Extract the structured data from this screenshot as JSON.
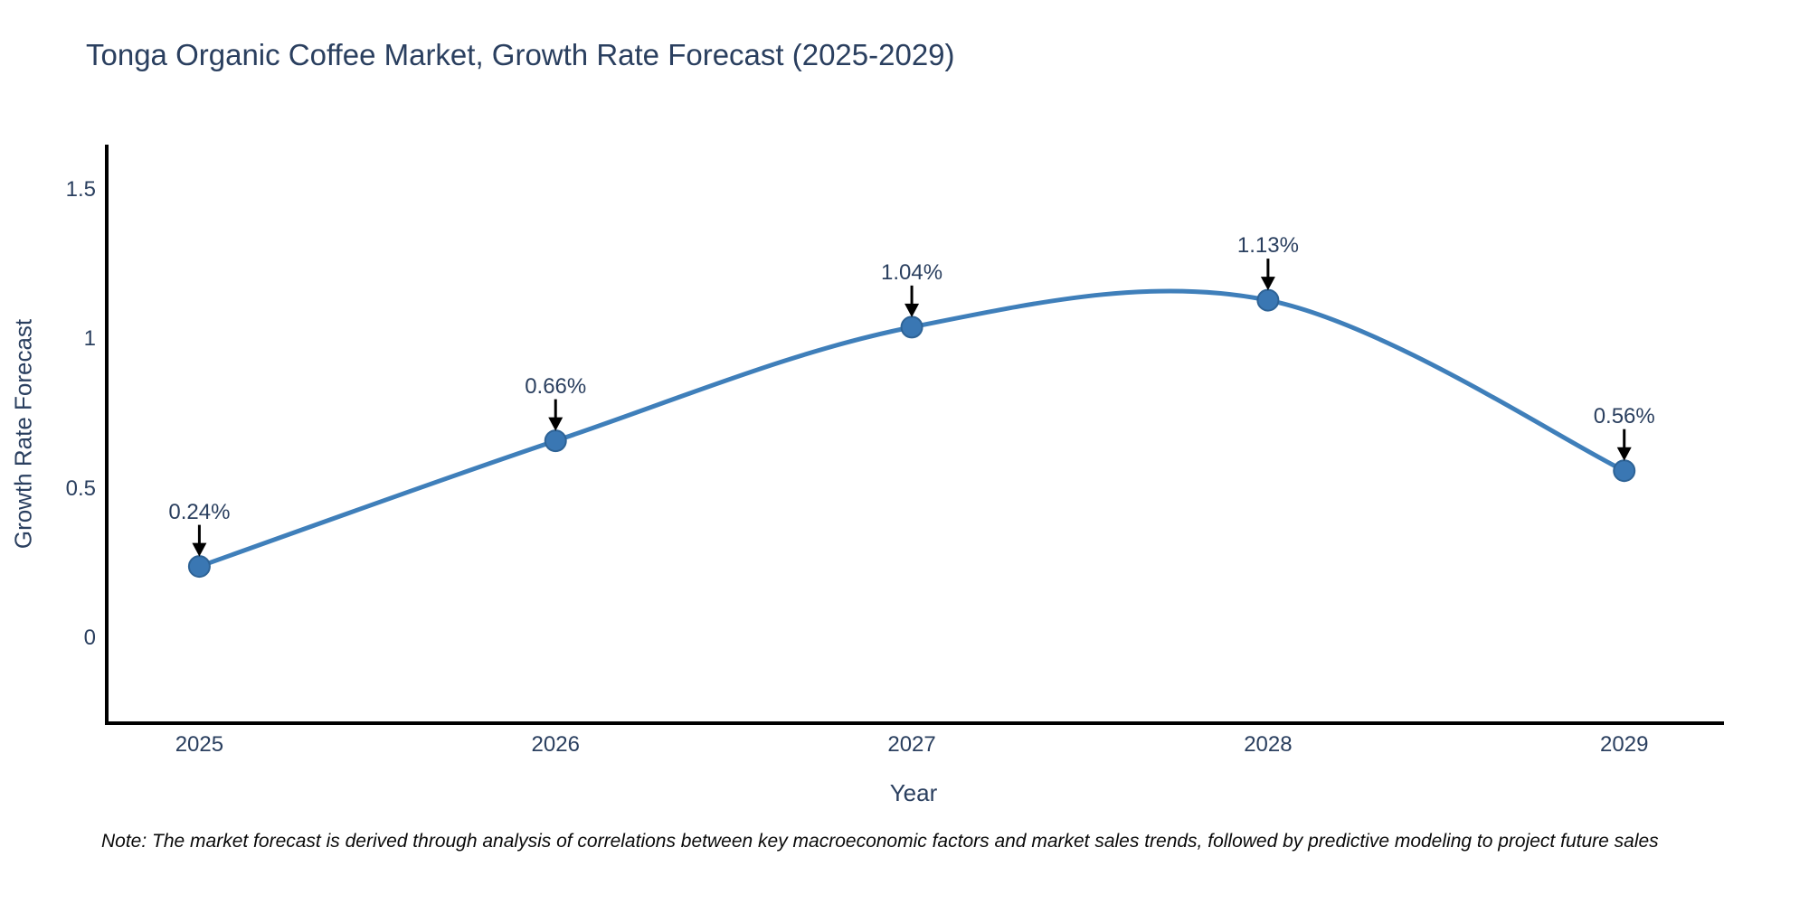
{
  "chart_data": {
    "type": "line",
    "title": "Tonga Organic Coffee Market, Growth Rate Forecast (2025-2029)",
    "xlabel": "Year",
    "ylabel": "Growth Rate Forecast",
    "categories": [
      2025,
      2026,
      2027,
      2028,
      2029
    ],
    "x_tick_labels": [
      "2025",
      "2026",
      "2027",
      "2028",
      "2029"
    ],
    "values": [
      0.24,
      0.66,
      1.04,
      1.13,
      0.56
    ],
    "point_labels": [
      "0.24%",
      "0.66%",
      "1.04%",
      "1.13%",
      "0.56%"
    ],
    "unit": "%",
    "line_shape": "spline",
    "yticks": [
      0,
      0.5,
      1,
      1.5
    ],
    "ytick_labels": [
      "0",
      "0.5",
      "1",
      "1.5"
    ],
    "xlim": [
      2024.74,
      2029.28
    ],
    "ylim": [
      -0.284,
      1.65
    ],
    "grid": false,
    "legend": false,
    "annotation_arrows": true,
    "colors": {
      "line": "#3f7fba",
      "marker_fill": "#3a77b3",
      "marker_edge": "#2e6396",
      "axis_line": "#000000",
      "text": "#2a3f5f",
      "annotation_arrow": "#000000",
      "background": "#ffffff"
    }
  },
  "note": {
    "text": "Note: The market forecast is derived through analysis of correlations between key macroeconomic factors and market sales trends, followed by predictive modeling to project future sales"
  }
}
